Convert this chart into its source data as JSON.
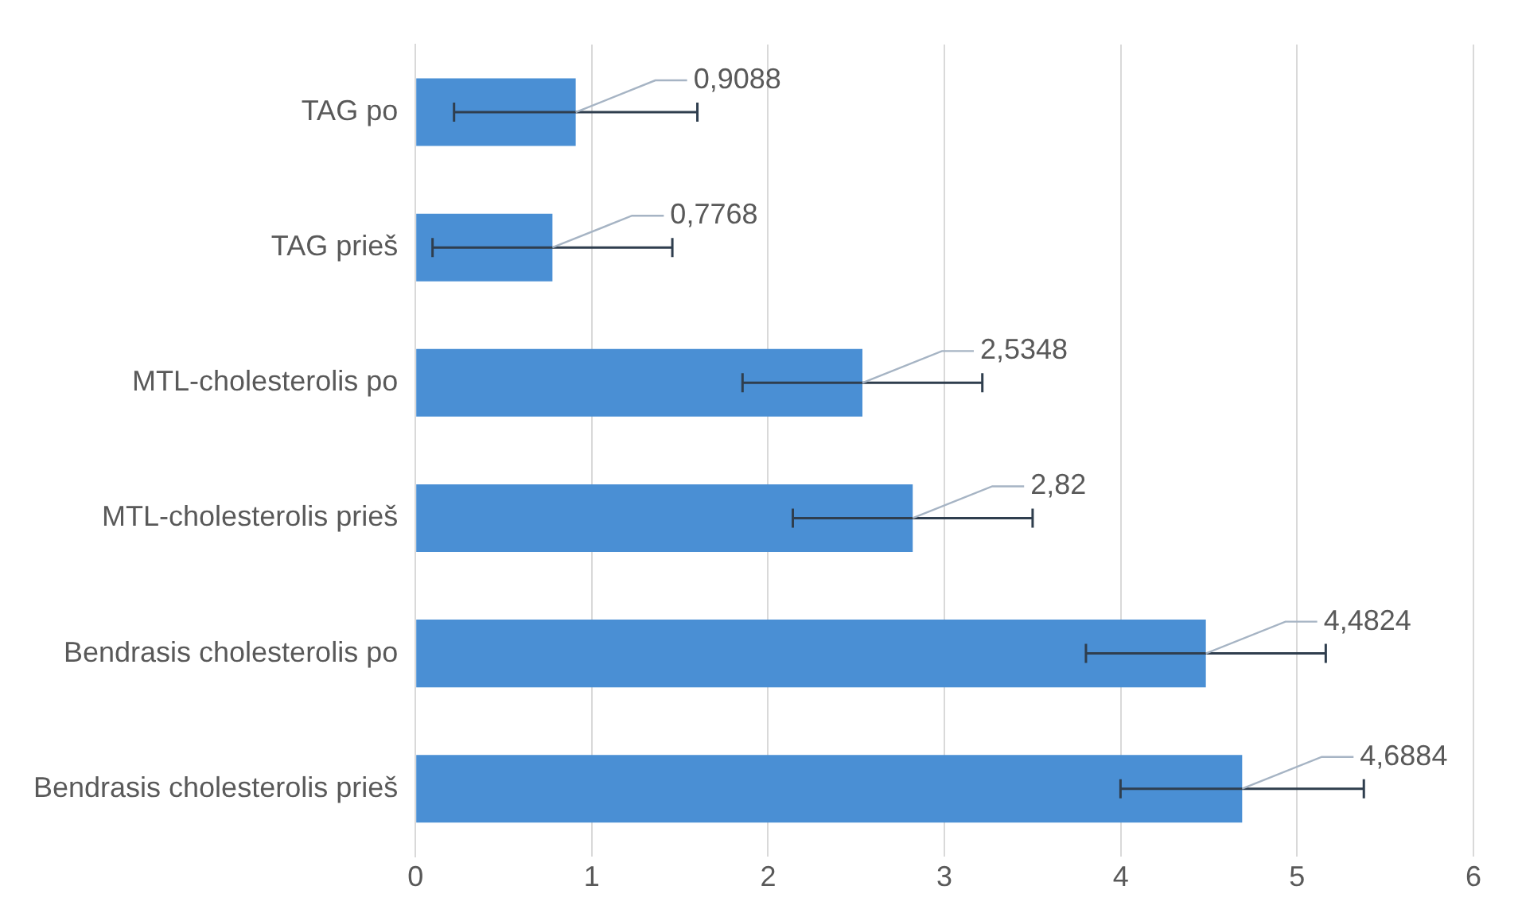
{
  "chart_data": {
    "type": "bar",
    "orientation": "horizontal",
    "categories": [
      "TAG po",
      "TAG prieš",
      "MTL-cholesterolis po",
      "MTL-cholesterolis prieš",
      "Bendrasis cholesterolis po",
      "Bendrasis cholesterolis prieš"
    ],
    "values": [
      0.9088,
      0.7768,
      2.5348,
      2.82,
      4.4824,
      4.6884
    ],
    "errors": [
      0.69,
      0.68,
      0.68,
      0.68,
      0.68,
      0.69
    ],
    "value_labels": [
      "0,9088",
      "0,7768",
      "2,5348",
      "2,82",
      "4,4824",
      "4,6884"
    ],
    "color": "#4a8fd4",
    "xlim": [
      0,
      6
    ],
    "xticks": [
      0,
      1,
      2,
      3,
      4,
      5,
      6
    ],
    "grid": "x",
    "legend": false
  }
}
